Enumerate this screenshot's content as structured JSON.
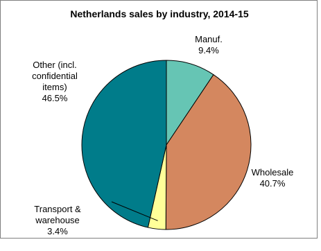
{
  "chart_data": {
    "type": "pie",
    "title": "Netherlands sales by industry, 2014-15",
    "slices": [
      {
        "label_lines": [
          "Manuf.",
          "9.4%"
        ],
        "value": 9.4,
        "color": "#66c5b4"
      },
      {
        "label_lines": [
          "Wholesale",
          "40.7%"
        ],
        "value": 40.7,
        "color": "#d4875f"
      },
      {
        "label_lines": [
          "Transport &",
          "warehouse",
          "3.4%"
        ],
        "value": 3.4,
        "color": "#ffff99"
      },
      {
        "label_lines": [
          "Other (incl.",
          "confidential",
          "items)",
          "46.5%"
        ],
        "value": 46.5,
        "color": "#007c8a"
      }
    ],
    "start_angle": "12 o'clock",
    "direction": "clockwise",
    "slice_border_color": "#000000"
  }
}
